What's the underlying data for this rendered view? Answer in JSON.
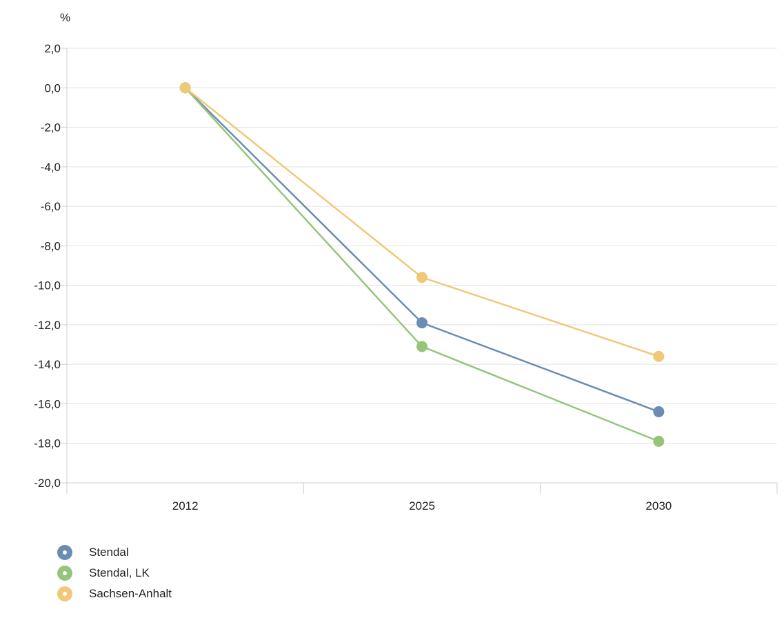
{
  "chart_data": {
    "type": "line",
    "ylabel": "%",
    "categories": [
      "2012",
      "2025",
      "2030"
    ],
    "ylim": [
      -20,
      2
    ],
    "yticks": [
      2,
      0,
      -2,
      -4,
      -6,
      -8,
      -10,
      -12,
      -14,
      -16,
      -18,
      -20
    ],
    "ytick_labels": [
      "2,0",
      "0,0",
      "-2,0",
      "-4,0",
      "-6,0",
      "-8,0",
      "-10,0",
      "-12,0",
      "-14,0",
      "-16,0",
      "-18,0",
      "-20,0"
    ],
    "grid": true,
    "legend_position": "bottom-left",
    "series": [
      {
        "name": "Stendal",
        "color": "#6b8cb3",
        "values": [
          0.0,
          -11.9,
          -16.4
        ]
      },
      {
        "name": "Stendal, LK",
        "color": "#95c57b",
        "values": [
          0.0,
          -13.1,
          -17.9
        ]
      },
      {
        "name": "Sachsen-Anhalt",
        "color": "#f0c878",
        "values": [
          0.0,
          -9.6,
          -13.6
        ]
      }
    ]
  }
}
